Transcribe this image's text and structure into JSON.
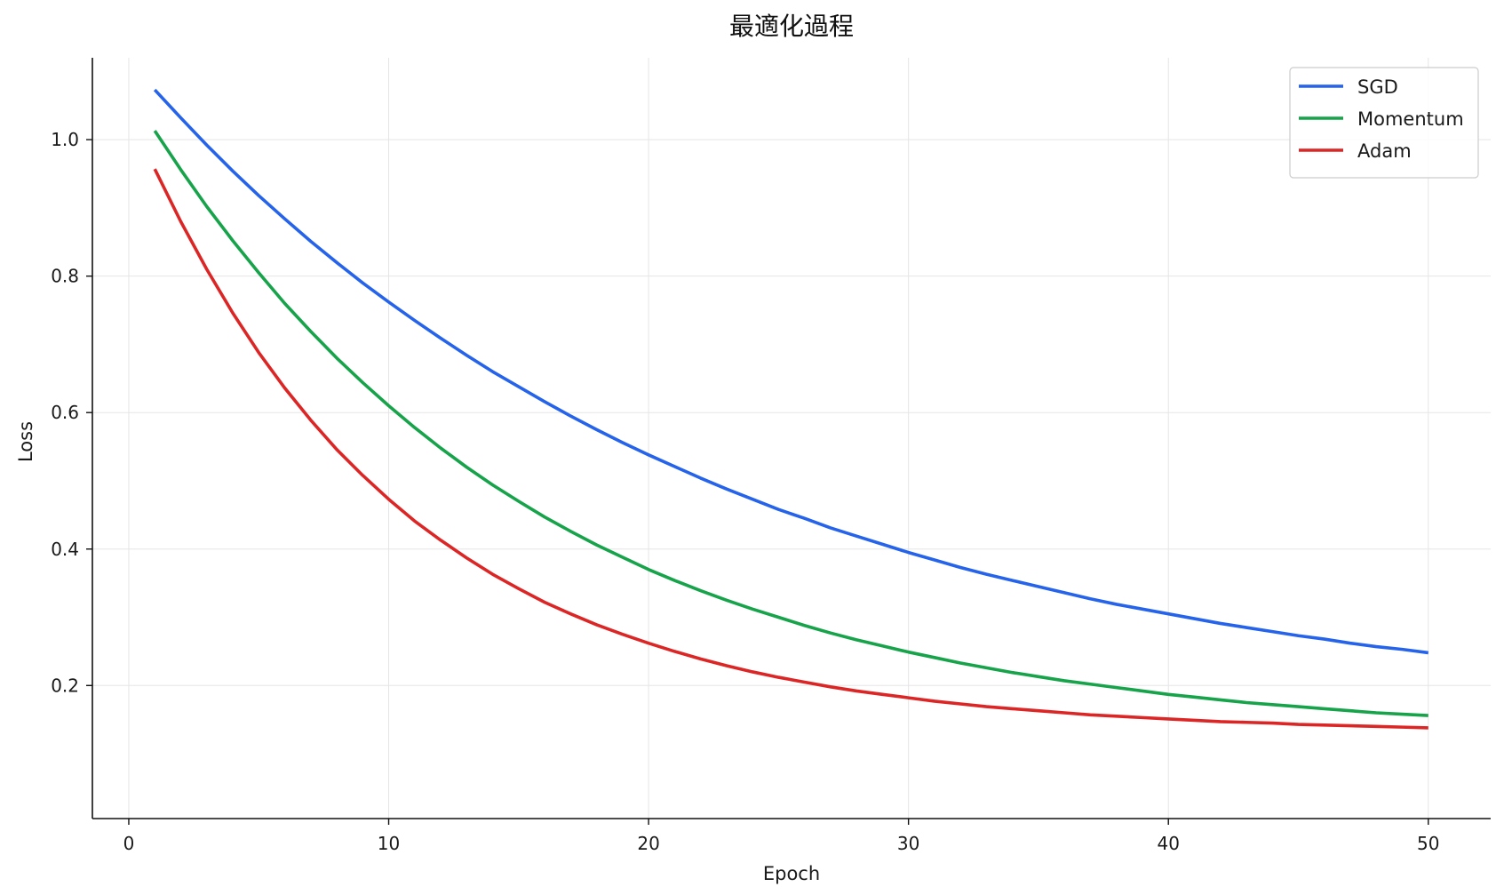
{
  "chart_data": {
    "type": "line",
    "title": "最適化過程",
    "xlabel": "Epoch",
    "ylabel": "Loss",
    "xlim": [
      -1.4,
      52.4
    ],
    "ylim": [
      0.005,
      1.12
    ],
    "xticks": [
      0,
      10,
      20,
      30,
      40,
      50
    ],
    "yticks": [
      0.2,
      0.4,
      0.6,
      0.8,
      1.0
    ],
    "xtick_labels": [
      "0",
      "10",
      "20",
      "30",
      "40",
      "50"
    ],
    "ytick_labels": [
      "0.2",
      "0.4",
      "0.6",
      "0.8",
      "1.0"
    ],
    "grid": true,
    "legend_position": "top-right",
    "x": [
      1,
      2,
      3,
      4,
      5,
      6,
      7,
      8,
      9,
      10,
      11,
      12,
      13,
      14,
      15,
      16,
      17,
      18,
      19,
      20,
      21,
      22,
      23,
      24,
      25,
      26,
      27,
      28,
      29,
      30,
      31,
      32,
      33,
      34,
      35,
      36,
      37,
      38,
      39,
      40,
      41,
      42,
      43,
      44,
      45,
      46,
      47,
      48,
      49,
      50
    ],
    "series": [
      {
        "name": "SGD",
        "color": "#2563eb",
        "values": [
          1.073,
          1.032,
          0.992,
          0.954,
          0.918,
          0.884,
          0.851,
          0.82,
          0.79,
          0.762,
          0.735,
          0.709,
          0.684,
          0.66,
          0.638,
          0.616,
          0.595,
          0.575,
          0.556,
          0.538,
          0.521,
          0.504,
          0.488,
          0.473,
          0.458,
          0.445,
          0.431,
          0.419,
          0.407,
          0.395,
          0.384,
          0.373,
          0.363,
          0.354,
          0.345,
          0.336,
          0.327,
          0.319,
          0.312,
          0.305,
          0.298,
          0.291,
          0.285,
          0.279,
          0.273,
          0.268,
          0.262,
          0.257,
          0.253,
          0.248
        ]
      },
      {
        "name": "Momentum",
        "color": "#16a34a",
        "values": [
          1.013,
          0.956,
          0.902,
          0.852,
          0.805,
          0.76,
          0.719,
          0.68,
          0.644,
          0.61,
          0.578,
          0.548,
          0.52,
          0.494,
          0.47,
          0.447,
          0.426,
          0.406,
          0.388,
          0.37,
          0.354,
          0.339,
          0.325,
          0.312,
          0.3,
          0.288,
          0.277,
          0.267,
          0.258,
          0.249,
          0.241,
          0.233,
          0.226,
          0.219,
          0.213,
          0.207,
          0.202,
          0.197,
          0.192,
          0.187,
          0.183,
          0.179,
          0.175,
          0.172,
          0.169,
          0.166,
          0.163,
          0.16,
          0.158,
          0.156
        ]
      },
      {
        "name": "Adam",
        "color": "#dc2626",
        "values": [
          0.957,
          0.88,
          0.81,
          0.746,
          0.688,
          0.636,
          0.589,
          0.546,
          0.508,
          0.473,
          0.441,
          0.413,
          0.387,
          0.363,
          0.342,
          0.322,
          0.305,
          0.289,
          0.275,
          0.262,
          0.25,
          0.239,
          0.229,
          0.22,
          0.212,
          0.205,
          0.198,
          0.192,
          0.187,
          0.182,
          0.177,
          0.173,
          0.169,
          0.166,
          0.163,
          0.16,
          0.157,
          0.155,
          0.153,
          0.151,
          0.149,
          0.147,
          0.146,
          0.145,
          0.143,
          0.142,
          0.141,
          0.14,
          0.139,
          0.138
        ]
      }
    ]
  }
}
